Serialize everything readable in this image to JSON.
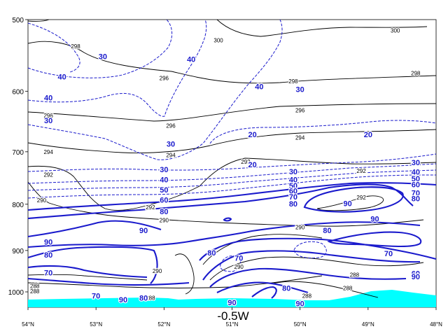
{
  "chart_data": {
    "type": "contour",
    "title": "-0.5W",
    "x_ticks": [
      "54°N",
      "53°N",
      "52°N",
      "51°N",
      "50°N",
      "49°N",
      "48°N"
    ],
    "xlim": [
      54,
      48
    ],
    "y_ticks": [
      500,
      600,
      700,
      800,
      900,
      1000
    ],
    "ylim": [
      500,
      1040
    ],
    "y_scale": "log-pressure",
    "colors": {
      "theta": "#000000",
      "rh": "#1a1acc",
      "terrain": "#00ffff"
    },
    "theta_labels": [
      {
        "text": "298",
        "lat": 53.3,
        "p": 535
      },
      {
        "text": "300",
        "lat": 51.2,
        "p": 527
      },
      {
        "text": "300",
        "lat": 48.6,
        "p": 514
      },
      {
        "text": "296",
        "lat": 52.0,
        "p": 580
      },
      {
        "text": "298",
        "lat": 50.1,
        "p": 585
      },
      {
        "text": "298",
        "lat": 48.3,
        "p": 573
      },
      {
        "text": "296",
        "lat": 53.7,
        "p": 638
      },
      {
        "text": "296",
        "lat": 51.9,
        "p": 655
      },
      {
        "text": "296",
        "lat": 50.0,
        "p": 630
      },
      {
        "text": "294",
        "lat": 53.7,
        "p": 700
      },
      {
        "text": "294",
        "lat": 51.9,
        "p": 706
      },
      {
        "text": "294",
        "lat": 50.0,
        "p": 675
      },
      {
        "text": "292",
        "lat": 53.7,
        "p": 742
      },
      {
        "text": "292",
        "lat": 50.8,
        "p": 718
      },
      {
        "text": "292",
        "lat": 49.1,
        "p": 735
      },
      {
        "text": "290",
        "lat": 53.8,
        "p": 792
      },
      {
        "text": "292",
        "lat": 52.2,
        "p": 806
      },
      {
        "text": "292",
        "lat": 49.1,
        "p": 786
      },
      {
        "text": "290",
        "lat": 52.0,
        "p": 833
      },
      {
        "text": "290",
        "lat": 50.0,
        "p": 848
      },
      {
        "text": "288",
        "lat": 53.9,
        "p": 985
      },
      {
        "text": "288",
        "lat": 53.9,
        "p": 998
      },
      {
        "text": "290",
        "lat": 52.1,
        "p": 948
      },
      {
        "text": "290",
        "lat": 50.9,
        "p": 938
      },
      {
        "text": "288",
        "lat": 52.2,
        "p": 1015
      },
      {
        "text": "288",
        "lat": 49.9,
        "p": 1010
      },
      {
        "text": "288",
        "lat": 49.2,
        "p": 957
      },
      {
        "text": "288",
        "lat": 49.3,
        "p": 990
      }
    ],
    "rh_labels": [
      {
        "text": "30",
        "lat": 52.9,
        "p": 549
      },
      {
        "text": "40",
        "lat": 51.6,
        "p": 553
      },
      {
        "text": "40",
        "lat": 53.5,
        "p": 578
      },
      {
        "text": "40",
        "lat": 53.7,
        "p": 610
      },
      {
        "text": "30",
        "lat": 53.7,
        "p": 646
      },
      {
        "text": "40",
        "lat": 50.6,
        "p": 593
      },
      {
        "text": "30",
        "lat": 50.0,
        "p": 597
      },
      {
        "text": "20",
        "lat": 50.7,
        "p": 670
      },
      {
        "text": "20",
        "lat": 49.0,
        "p": 670
      },
      {
        "text": "30",
        "lat": 51.9,
        "p": 686
      },
      {
        "text": "20",
        "lat": 50.7,
        "p": 723
      },
      {
        "text": "30",
        "lat": 52.0,
        "p": 732
      },
      {
        "text": "40",
        "lat": 52.0,
        "p": 751
      },
      {
        "text": "50",
        "lat": 52.0,
        "p": 771
      },
      {
        "text": "60",
        "lat": 52.0,
        "p": 791
      },
      {
        "text": "80",
        "lat": 52.0,
        "p": 815
      },
      {
        "text": "30",
        "lat": 50.1,
        "p": 736
      },
      {
        "text": "40",
        "lat": 50.1,
        "p": 751
      },
      {
        "text": "50",
        "lat": 50.1,
        "p": 763
      },
      {
        "text": "60",
        "lat": 50.1,
        "p": 773
      },
      {
        "text": "70",
        "lat": 50.1,
        "p": 785
      },
      {
        "text": "80",
        "lat": 50.1,
        "p": 799
      },
      {
        "text": "30",
        "lat": 48.3,
        "p": 719
      },
      {
        "text": "40",
        "lat": 48.3,
        "p": 737
      },
      {
        "text": "50",
        "lat": 48.3,
        "p": 749
      },
      {
        "text": "60",
        "lat": 48.3,
        "p": 761
      },
      {
        "text": "70",
        "lat": 48.3,
        "p": 777
      },
      {
        "text": "80",
        "lat": 48.3,
        "p": 788
      },
      {
        "text": "90",
        "lat": 49.3,
        "p": 798
      },
      {
        "text": "90",
        "lat": 48.9,
        "p": 830
      },
      {
        "text": "90",
        "lat": 53.7,
        "p": 880
      },
      {
        "text": "90",
        "lat": 52.3,
        "p": 855
      },
      {
        "text": "80",
        "lat": 53.7,
        "p": 910
      },
      {
        "text": "70",
        "lat": 53.7,
        "p": 952
      },
      {
        "text": "80",
        "lat": 51.3,
        "p": 905
      },
      {
        "text": "70",
        "lat": 50.9,
        "p": 917
      },
      {
        "text": "80",
        "lat": 49.6,
        "p": 855
      },
      {
        "text": "80",
        "lat": 50.2,
        "p": 990
      },
      {
        "text": "70",
        "lat": 48.7,
        "p": 907
      },
      {
        "text": "60",
        "lat": 48.3,
        "p": 954
      },
      {
        "text": "90",
        "lat": 48.3,
        "p": 962
      },
      {
        "text": "70",
        "lat": 53.0,
        "p": 1010
      },
      {
        "text": "90",
        "lat": 52.6,
        "p": 1020
      },
      {
        "text": "80",
        "lat": 52.3,
        "p": 1015
      },
      {
        "text": "90",
        "lat": 51.0,
        "p": 1027
      },
      {
        "text": "90",
        "lat": 50.0,
        "p": 1030
      }
    ]
  }
}
